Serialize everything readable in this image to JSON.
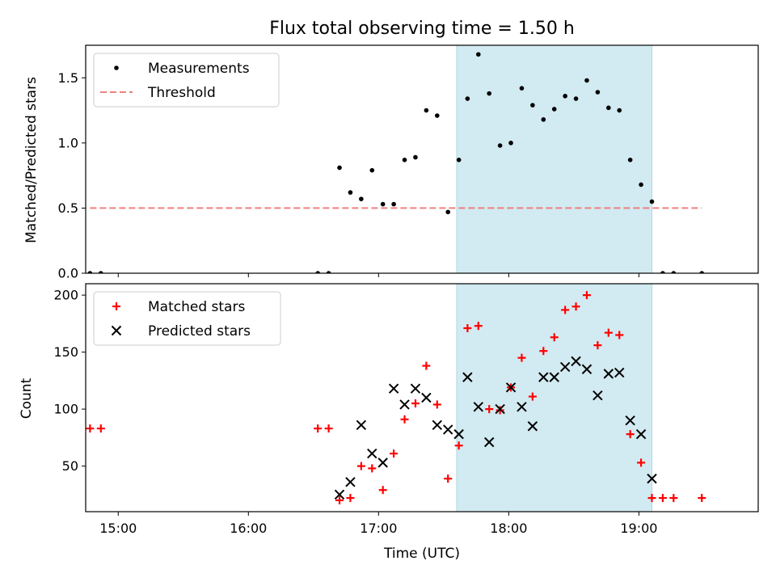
{
  "chart_data": {
    "title": "Flux total observing time = 1.50 h",
    "xlabel": "Time (UTC)",
    "xlim": [
      "14:45",
      "19:55"
    ],
    "x_tick_labels": [
      "15:00",
      "16:00",
      "17:00",
      "18:00",
      "19:00"
    ],
    "shaded_interval": {
      "start": "17:36",
      "end": "19:06",
      "color": "#add8e6"
    },
    "panels": [
      {
        "type": "scatter",
        "ylabel": "Matched/Predicted stars",
        "ylim": [
          0,
          1.75
        ],
        "y_tick_labels": [
          "0.0",
          "0.5",
          "1.0",
          "1.5"
        ],
        "legend_position": "top-left",
        "grid": false,
        "series": [
          {
            "name": "Measurements",
            "marker": "dot",
            "color": "#000000",
            "x": [
              "14:47",
              "14:52",
              "16:32",
              "16:37",
              "16:42",
              "16:47",
              "16:52",
              "16:57",
              "17:02",
              "17:07",
              "17:12",
              "17:17",
              "17:22",
              "17:27",
              "17:32",
              "17:37",
              "17:41",
              "17:46",
              "17:51",
              "17:56",
              "18:01",
              "18:06",
              "18:11",
              "18:16",
              "18:21",
              "18:26",
              "18:31",
              "18:36",
              "18:41",
              "18:46",
              "18:51",
              "18:56",
              "19:01",
              "19:06",
              "19:11",
              "19:16",
              "19:29"
            ],
            "y": [
              0.0,
              0.0,
              0.0,
              0.0,
              0.81,
              0.62,
              0.57,
              0.79,
              0.53,
              0.53,
              0.87,
              0.89,
              1.25,
              1.21,
              0.47,
              0.87,
              1.34,
              1.68,
              1.38,
              0.98,
              1.0,
              1.42,
              1.29,
              1.18,
              1.26,
              1.36,
              1.34,
              1.48,
              1.39,
              1.27,
              1.25,
              0.87,
              0.68,
              0.55,
              0.0,
              0.0,
              0.0
            ]
          },
          {
            "name": "Threshold",
            "marker": "dashed-line",
            "color": "#f08080",
            "x": [
              "14:47",
              "19:29"
            ],
            "y": [
              0.5,
              0.5
            ]
          }
        ]
      },
      {
        "type": "scatter",
        "ylabel": "Count",
        "ylim": [
          10,
          210
        ],
        "y_tick_labels": [
          "50",
          "100",
          "150",
          "200"
        ],
        "legend_position": "top-left",
        "grid": false,
        "series": [
          {
            "name": "Matched stars",
            "marker": "plus",
            "color": "#ff0000",
            "x": [
              "14:47",
              "14:52",
              "16:32",
              "16:37",
              "16:42",
              "16:47",
              "16:52",
              "16:57",
              "17:02",
              "17:07",
              "17:12",
              "17:17",
              "17:22",
              "17:27",
              "17:32",
              "17:37",
              "17:41",
              "17:46",
              "17:51",
              "17:56",
              "18:01",
              "18:06",
              "18:11",
              "18:16",
              "18:21",
              "18:26",
              "18:31",
              "18:36",
              "18:41",
              "18:46",
              "18:51",
              "18:56",
              "19:01",
              "19:06",
              "19:11",
              "19:16",
              "19:29"
            ],
            "y": [
              83,
              83,
              83,
              83,
              20,
              22,
              50,
              48,
              29,
              61,
              91,
              105,
              138,
              104,
              39,
              68,
              171,
              173,
              100,
              99,
              119,
              145,
              111,
              151,
              163,
              187,
              190,
              200,
              156,
              167,
              165,
              78,
              53,
              22,
              22,
              22,
              22
            ]
          },
          {
            "name": "Predicted stars",
            "marker": "x",
            "color": "#000000",
            "x": [
              "16:42",
              "16:47",
              "16:52",
              "16:57",
              "17:02",
              "17:07",
              "17:12",
              "17:17",
              "17:22",
              "17:27",
              "17:32",
              "17:37",
              "17:41",
              "17:46",
              "17:51",
              "17:56",
              "18:01",
              "18:06",
              "18:11",
              "18:16",
              "18:21",
              "18:26",
              "18:31",
              "18:36",
              "18:41",
              "18:46",
              "18:51",
              "18:56",
              "19:01",
              "19:06"
            ],
            "y": [
              25,
              36,
              86,
              61,
              53,
              118,
              104,
              118,
              110,
              86,
              82,
              78,
              128,
              102,
              71,
              100,
              119,
              102,
              85,
              128,
              128,
              137,
              142,
              135,
              112,
              131,
              132,
              90,
              78,
              39
            ]
          }
        ]
      }
    ]
  }
}
